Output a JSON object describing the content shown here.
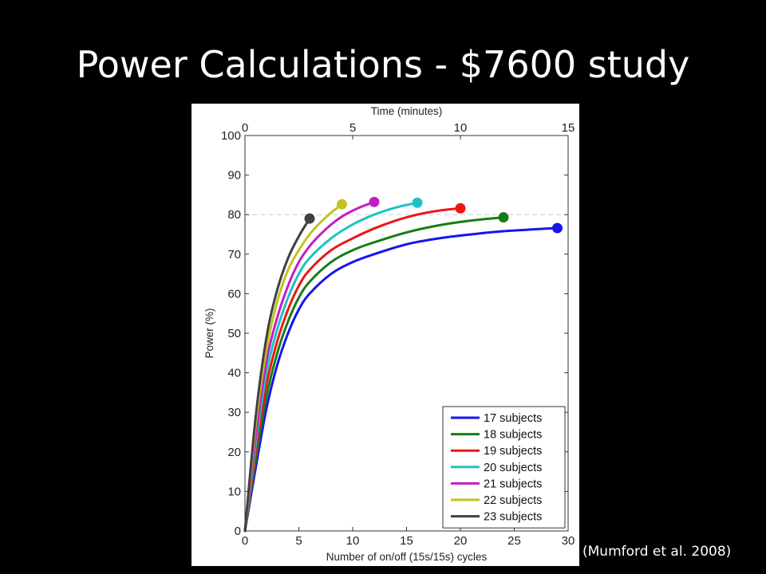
{
  "slide": {
    "title": "Power Calculations - $7600 study",
    "citation": "(Mumford et al. 2008)"
  },
  "chart_data": {
    "type": "line",
    "xlabel": "Number of on/off (15s/15s) cycles",
    "x2label": "Time (minutes)",
    "ylabel": "Power (%)",
    "xlim": [
      0,
      30
    ],
    "x2lim": [
      0,
      15
    ],
    "ylim": [
      0,
      100
    ],
    "xticks": [
      0,
      5,
      10,
      15,
      20,
      25,
      30
    ],
    "x2ticks": [
      0,
      5,
      10,
      15
    ],
    "yticks": [
      0,
      10,
      20,
      30,
      40,
      50,
      60,
      70,
      80,
      90,
      100
    ],
    "reference_line": {
      "y": 80,
      "style": "dashed",
      "color": "#cccccc"
    },
    "grid": false,
    "legend_position": "bottom-right",
    "series": [
      {
        "name": "17 subjects",
        "color": "#1515ee",
        "x": [
          0,
          1,
          2,
          3,
          4,
          5,
          6,
          8,
          10,
          12,
          15,
          18,
          21,
          24,
          27,
          29
        ],
        "y": [
          0,
          16,
          31,
          42,
          50,
          56,
          60,
          65,
          68,
          70,
          72.5,
          74,
          75,
          75.8,
          76.3,
          76.6
        ]
      },
      {
        "name": "18 subjects",
        "color": "#167d16",
        "x": [
          0,
          1,
          2,
          3,
          4,
          5,
          6,
          8,
          10,
          12,
          15,
          18,
          21,
          24
        ],
        "y": [
          0,
          18,
          34,
          45,
          53,
          59,
          63,
          68,
          71,
          73,
          75.5,
          77.3,
          78.5,
          79.3
        ]
      },
      {
        "name": "19 subjects",
        "color": "#ee1515",
        "x": [
          0,
          1,
          2,
          3,
          4,
          5,
          6,
          8,
          10,
          12,
          14,
          16,
          18,
          20
        ],
        "y": [
          0,
          20,
          37,
          48,
          56,
          62,
          66,
          71,
          74,
          76.5,
          78.5,
          80,
          81,
          81.6
        ]
      },
      {
        "name": "20 subjects",
        "color": "#1fc2c2",
        "x": [
          0,
          1,
          2,
          3,
          4,
          5,
          6,
          8,
          10,
          12,
          14,
          16
        ],
        "y": [
          0,
          22,
          40,
          51,
          59,
          65,
          69,
          74,
          77.5,
          80,
          81.8,
          83
        ]
      },
      {
        "name": "21 subjects",
        "color": "#c21fc2",
        "x": [
          0,
          1,
          2,
          3,
          4,
          5,
          6,
          7,
          8,
          9,
          10,
          11,
          12
        ],
        "y": [
          0,
          24,
          43,
          54,
          62,
          68,
          72,
          75,
          77.5,
          79.5,
          81,
          82.2,
          83.2
        ]
      },
      {
        "name": "22 subjects",
        "color": "#c2c21f",
        "x": [
          0,
          1,
          2,
          3,
          4,
          5,
          6,
          7,
          8,
          9
        ],
        "y": [
          0,
          27,
          46,
          58,
          66,
          71,
          75,
          78,
          80.5,
          82.6
        ]
      },
      {
        "name": "23 subjects",
        "color": "#404040",
        "x": [
          0,
          1,
          2,
          3,
          4,
          5,
          6
        ],
        "y": [
          0,
          29,
          49,
          61,
          69,
          74.5,
          79
        ]
      }
    ]
  }
}
